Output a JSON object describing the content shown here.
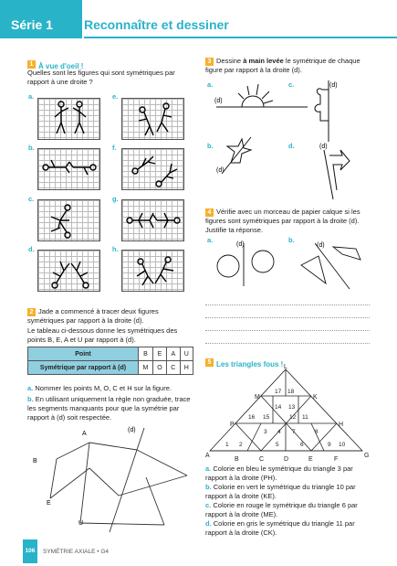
{
  "header": {
    "serie": "Série 1",
    "title": "Reconnaître et dessiner"
  },
  "ex1": {
    "num": "1",
    "title": "À vue d'oeil !",
    "question": "Quelles sont les figures qui sont symétriques par rapport à une droite ?",
    "labels": [
      "a.",
      "e.",
      "b.",
      "f.",
      "c.",
      "g.",
      "d.",
      "h."
    ]
  },
  "ex2": {
    "num": "2",
    "intro": "Jade a commencé à tracer deux figures symétriques par rapport à la droite (d).",
    "intro2": "Le tableau ci-dessous donne les symétriques des points B, E, A et U par rapport à (d).",
    "table": {
      "row1_head": "Point",
      "row1": [
        "B",
        "E",
        "A",
        "U"
      ],
      "row2_head": "Symétrique par rapport à (d)",
      "row2": [
        "M",
        "O",
        "C",
        "H"
      ]
    },
    "qa_label": "a.",
    "qa": "Nommer les points M, O, C et H sur la figure.",
    "qb_label": "b.",
    "qb": "En utilisant uniquement la règle non graduée, trace les segments manquants pour que la symétrie par rapport à (d) soit respectée.",
    "fig_labels": {
      "A": "A",
      "B": "B",
      "E": "E",
      "U": "U",
      "d": "(d)"
    }
  },
  "ex3": {
    "num": "3",
    "pre": "Dessine ",
    "bold": "à main levée",
    "post": " le symétrique de chaque figure par rapport à la droite (d).",
    "labels": [
      "a.",
      "c.",
      "b.",
      "d."
    ],
    "d": "(d)"
  },
  "ex4": {
    "num": "4",
    "text": "Vérifie avec un morceau de papier calque si les figures sont symétriques par rapport à la droite (d). Justifie ta réponse.",
    "labels": [
      "a.",
      "b."
    ],
    "d": "(d)"
  },
  "ex5": {
    "num": "5",
    "title": "Les triangles fous !",
    "points": {
      "L": "L",
      "M": "M",
      "K": "K",
      "P": "P",
      "H": "H",
      "A": "A",
      "B": "B",
      "C": "C",
      "D": "D",
      "E": "E",
      "F": "F",
      "G": "G"
    },
    "nums": [
      "1",
      "2",
      "3",
      "4",
      "5",
      "6",
      "7",
      "8",
      "9",
      "10",
      "11",
      "12",
      "13",
      "14",
      "15",
      "16",
      "17",
      "18"
    ],
    "qa_label": "a.",
    "qa": "Colorie en bleu le symétrique du triangle 3 par rapport à la droite (PH).",
    "qb_label": "b.",
    "qb": "Colorie en vert le symétrique du triangle 10 par rapport à la droite (KE).",
    "qc_label": "c.",
    "qc": "Colorie en rouge le symétrique du triangle 6 par rapport à la droite (ME).",
    "qd_label": "d.",
    "qd": "Colorie en gris le symétrique du triangle 11 par rapport à la droite (CK)."
  },
  "footer": {
    "page": "106",
    "text": "SYMÉTRIE AXIALE • G4"
  },
  "colors": {
    "accent": "#29b3c9",
    "number_badge": "#f6b02a"
  }
}
